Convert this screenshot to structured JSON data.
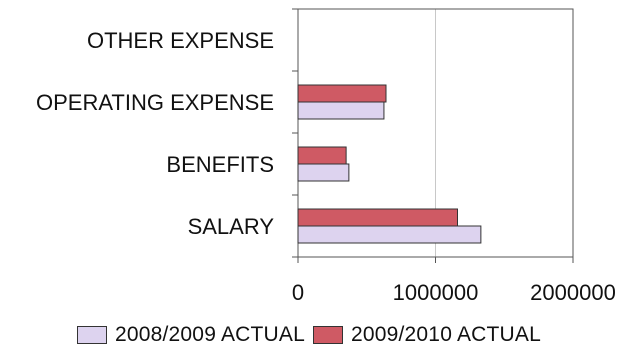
{
  "chart_data": {
    "type": "bar",
    "orientation": "horizontal",
    "categories": [
      "OTHER EXPENSE",
      "OPERATING EXPENSE",
      "BENEFITS",
      "SALARY"
    ],
    "series": [
      {
        "name": "2008/2009 ACTUAL",
        "color": "#ddd3ef",
        "values": [
          0,
          625000,
          370000,
          1330000
        ]
      },
      {
        "name": "2009/2010 ACTUAL",
        "color": "#cf5a64",
        "values": [
          0,
          640000,
          350000,
          1160000
        ]
      }
    ],
    "xlim": [
      0,
      2000000
    ],
    "x_ticks": [
      "0",
      "1000000",
      "2000000"
    ],
    "x_tick_values": [
      0,
      1000000,
      2000000
    ],
    "grid": true,
    "legend_position": "bottom",
    "title": "",
    "xlabel": "",
    "ylabel": ""
  }
}
